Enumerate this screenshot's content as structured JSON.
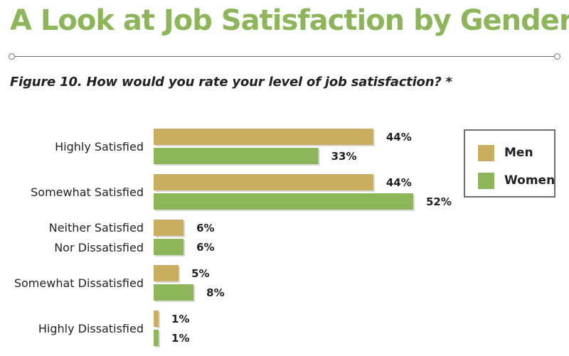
{
  "header": {
    "title": "A Look at Job Satisfaction by Gender",
    "figure_caption": "Figure 10.  How would you rate your level of job satisfaction? *"
  },
  "colors": {
    "title": "#8db55a",
    "men": "#c9ae60",
    "women": "#8db55a"
  },
  "chart_data": {
    "type": "bar",
    "orientation": "horizontal",
    "title": "",
    "xlabel": "",
    "ylabel": "",
    "xlim": [
      0,
      52
    ],
    "grid": false,
    "legend_position": "right",
    "value_format": "percent",
    "categories": [
      [
        "Highly Satisfied"
      ],
      [
        "Somewhat Satisfied"
      ],
      [
        "Neither Satisfied",
        "Nor Dissatisfied"
      ],
      [
        "Somewhat Dissatisfied"
      ],
      [
        "Highly Dissatisfied"
      ]
    ],
    "series": [
      {
        "name": "Men",
        "color": "#c9ae60",
        "values": [
          44,
          44,
          6,
          5,
          1
        ]
      },
      {
        "name": "Women",
        "color": "#8db55a",
        "values": [
          33,
          52,
          6,
          8,
          1
        ]
      }
    ]
  }
}
